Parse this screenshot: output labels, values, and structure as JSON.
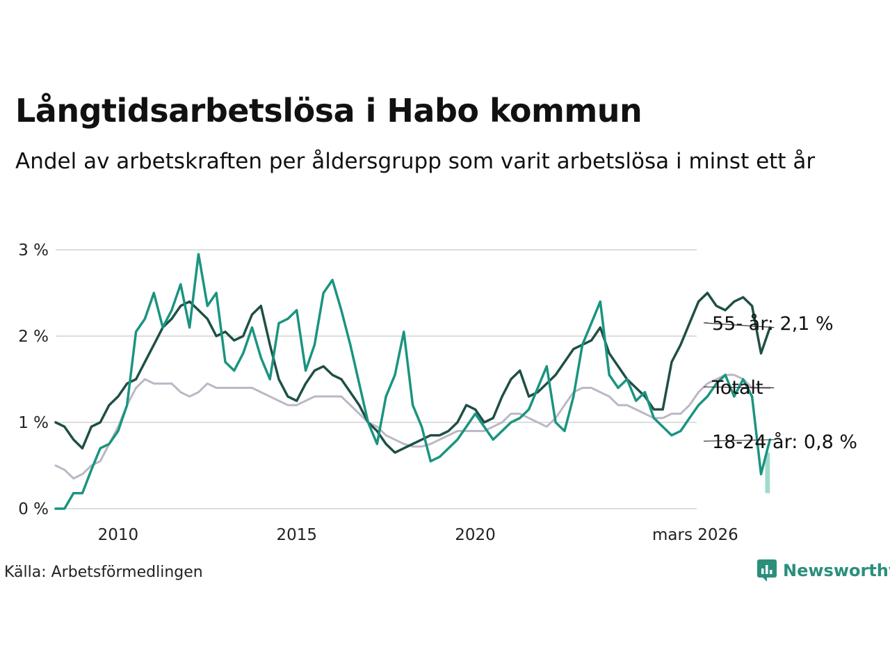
{
  "title": "Långtidsarbetslösa i Habo kommun",
  "subtitle": "Andel av arbetskraften per åldersgrupp som varit arbetslösa i minst ett år",
  "source": "Källa: Arbetsförmedlingen",
  "brand": {
    "name": "Newsworthy",
    "icon": "newsworthy-logo-icon"
  },
  "colors": {
    "s55": "#1f4f46",
    "total": "#bbb7c6",
    "s1824": "#1a9480",
    "s1824_band": "#8fd3c6",
    "grid": "#dddddd"
  },
  "chart_data": {
    "type": "line",
    "title": "Långtidsarbetslösa i Habo kommun",
    "ylabel": "",
    "xlabel": "",
    "x_start": 2008.25,
    "x_step": 0.25,
    "xlim": [
      2008.25,
      2026.2
    ],
    "ylim": [
      0,
      3.5
    ],
    "yticks": [
      {
        "v": 0,
        "label": "0 %"
      },
      {
        "v": 1,
        "label": "1 %"
      },
      {
        "v": 2,
        "label": "2 %"
      },
      {
        "v": 3,
        "label": "3 %"
      }
    ],
    "xticks": [
      {
        "v": 2010,
        "label": "2010"
      },
      {
        "v": 2015,
        "label": "2015"
      },
      {
        "v": 2020,
        "label": "2020"
      },
      {
        "v": 2026.2,
        "label": "mars 2026"
      }
    ],
    "series": [
      {
        "key": "total",
        "name": "Totalt",
        "label": "Totalt",
        "values": [
          0.5,
          0.45,
          0.35,
          0.4,
          0.5,
          0.55,
          0.75,
          0.95,
          1.2,
          1.4,
          1.5,
          1.45,
          1.45,
          1.45,
          1.35,
          1.3,
          1.35,
          1.45,
          1.4,
          1.4,
          1.4,
          1.4,
          1.4,
          1.35,
          1.3,
          1.25,
          1.2,
          1.2,
          1.25,
          1.3,
          1.3,
          1.3,
          1.3,
          1.2,
          1.1,
          1.0,
          0.95,
          0.85,
          0.8,
          0.75,
          0.72,
          0.72,
          0.75,
          0.8,
          0.85,
          0.9,
          0.9,
          0.9,
          0.9,
          0.95,
          1.0,
          1.1,
          1.1,
          1.05,
          1.0,
          0.95,
          1.05,
          1.2,
          1.35,
          1.4,
          1.4,
          1.35,
          1.3,
          1.2,
          1.2,
          1.15,
          1.1,
          1.05,
          1.05,
          1.1,
          1.1,
          1.2,
          1.35,
          1.45,
          1.5,
          1.55,
          1.55,
          1.5,
          1.4,
          1.4,
          1.4
        ]
      },
      {
        "key": "s55",
        "name": "55- år",
        "label": "55- år: 2,1 %",
        "values": [
          1.0,
          0.95,
          0.8,
          0.7,
          0.95,
          1.0,
          1.2,
          1.3,
          1.45,
          1.5,
          1.7,
          1.9,
          2.1,
          2.2,
          2.35,
          2.4,
          2.3,
          2.2,
          2.0,
          2.05,
          1.95,
          2.0,
          2.25,
          2.35,
          1.9,
          1.5,
          1.3,
          1.25,
          1.45,
          1.6,
          1.65,
          1.55,
          1.5,
          1.35,
          1.2,
          1.0,
          0.9,
          0.75,
          0.65,
          0.7,
          0.75,
          0.8,
          0.85,
          0.85,
          0.9,
          1.0,
          1.2,
          1.15,
          1.0,
          1.05,
          1.3,
          1.5,
          1.6,
          1.3,
          1.35,
          1.45,
          1.55,
          1.7,
          1.85,
          1.9,
          1.95,
          2.1,
          1.8,
          1.65,
          1.5,
          1.4,
          1.3,
          1.15,
          1.15,
          1.7,
          1.9,
          2.15,
          2.4,
          2.5,
          2.35,
          2.3,
          2.4,
          2.45,
          2.35,
          1.8,
          2.1
        ]
      },
      {
        "key": "s1824",
        "name": "18-24 år",
        "label": "18-24 år: 0,8 %",
        "band": [
          0.18,
          0.65
        ],
        "values": [
          0.0,
          0.0,
          0.18,
          0.18,
          0.45,
          0.7,
          0.75,
          0.9,
          1.2,
          2.05,
          2.2,
          2.5,
          2.1,
          2.3,
          2.6,
          2.1,
          2.95,
          2.35,
          2.5,
          1.7,
          1.6,
          1.8,
          2.1,
          1.75,
          1.5,
          2.15,
          2.2,
          2.3,
          1.6,
          1.9,
          2.5,
          2.65,
          2.3,
          1.9,
          1.45,
          1.0,
          0.75,
          1.3,
          1.55,
          2.05,
          1.2,
          0.95,
          0.55,
          0.6,
          0.7,
          0.8,
          0.95,
          1.1,
          0.95,
          0.8,
          0.9,
          1.0,
          1.05,
          1.15,
          1.4,
          1.65,
          1.0,
          0.9,
          1.3,
          1.9,
          2.15,
          2.4,
          1.55,
          1.4,
          1.5,
          1.25,
          1.35,
          1.05,
          0.95,
          0.85,
          0.9,
          1.05,
          1.2,
          1.3,
          1.45,
          1.55,
          1.3,
          1.5,
          1.3,
          0.4,
          0.8
        ]
      }
    ]
  }
}
